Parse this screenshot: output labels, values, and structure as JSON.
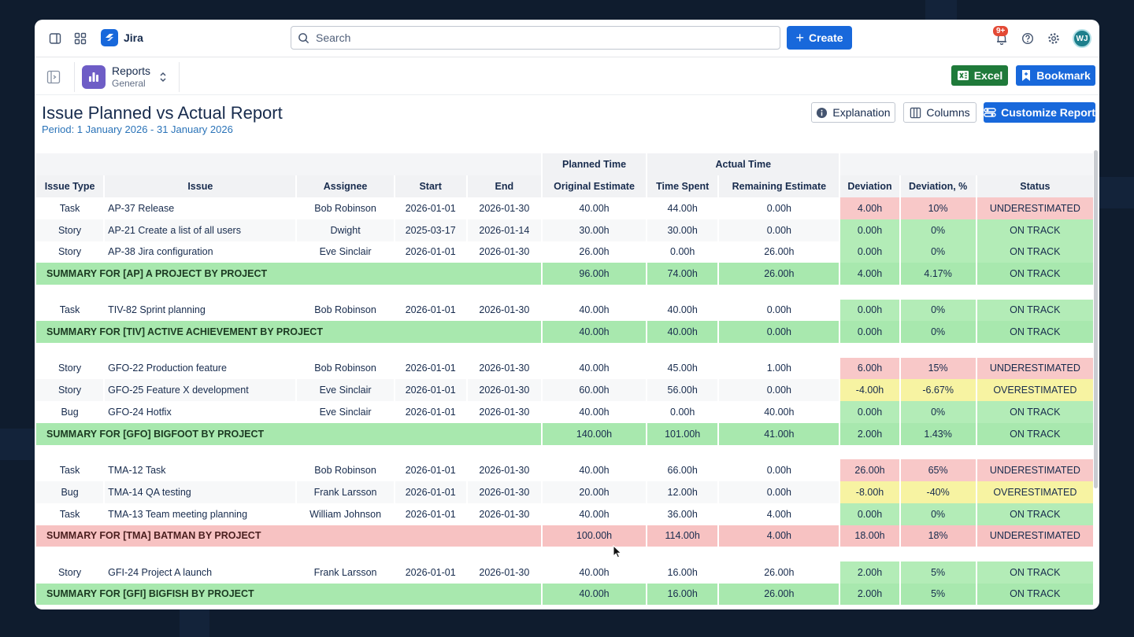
{
  "topbar": {
    "app_name": "Jira",
    "search_placeholder": "Search",
    "create_label": "Create",
    "notification_count": "9+",
    "avatar_initials": "WJ"
  },
  "subbar": {
    "section_title": "Reports",
    "section_subtitle": "General",
    "excel_label": "Excel",
    "bookmark_label": "Bookmark"
  },
  "report": {
    "title": "Issue Planned vs Actual Report",
    "period": "Period: 1 January 2026 - 31 January 2026",
    "explanation_label": "Explanation",
    "columns_label": "Columns",
    "customize_label": "Customize Report"
  },
  "table": {
    "group_headers": {
      "planned": "Planned Time",
      "actual": "Actual Time"
    },
    "columns": [
      "Issue Type",
      "Issue",
      "Assignee",
      "Start",
      "End",
      "Original Estimate",
      "Time Spent",
      "Remaining Estimate",
      "Deviation",
      "Deviation, %",
      "Status"
    ],
    "groups": [
      {
        "rows": [
          [
            "Task",
            "AP-37 Release",
            "Bob Robinson",
            "2026-01-01",
            "2026-01-30",
            "40.00h",
            "44.00h",
            "0.00h",
            "4.00h",
            "10%",
            "UNDERESTIMATED",
            "red"
          ],
          [
            "Story",
            "AP-21 Create a list of all users",
            "Dwight",
            "2025-03-17",
            "2026-01-14",
            "30.00h",
            "30.00h",
            "0.00h",
            "0.00h",
            "0%",
            "ON TRACK",
            "green"
          ],
          [
            "Story",
            "AP-38 Jira configuration",
            "Eve Sinclair",
            "2026-01-01",
            "2026-01-30",
            "26.00h",
            "0.00h",
            "26.00h",
            "0.00h",
            "0%",
            "ON TRACK",
            "green"
          ]
        ],
        "summary": [
          "SUMMARY FOR [AP] A PROJECT BY PROJECT",
          "96.00h",
          "74.00h",
          "26.00h",
          "4.00h",
          "4.17%",
          "ON TRACK",
          "green"
        ]
      },
      {
        "rows": [
          [
            "Task",
            "TIV-82 Sprint planning",
            "Bob Robinson",
            "2026-01-01",
            "2026-01-30",
            "40.00h",
            "40.00h",
            "0.00h",
            "0.00h",
            "0%",
            "ON TRACK",
            "green"
          ]
        ],
        "summary": [
          "SUMMARY FOR [TIV] ACTIVE ACHIEVEMENT BY PROJECT",
          "40.00h",
          "40.00h",
          "0.00h",
          "0.00h",
          "0%",
          "ON TRACK",
          "green"
        ]
      },
      {
        "rows": [
          [
            "Story",
            "GFO-22 Production feature",
            "Bob Robinson",
            "2026-01-01",
            "2026-01-30",
            "40.00h",
            "45.00h",
            "1.00h",
            "6.00h",
            "15%",
            "UNDERESTIMATED",
            "red"
          ],
          [
            "Story",
            "GFO-25 Feature X development",
            "Eve Sinclair",
            "2026-01-01",
            "2026-01-30",
            "60.00h",
            "56.00h",
            "0.00h",
            "-4.00h",
            "-6.67%",
            "OVERESTIMATED",
            "yellow"
          ],
          [
            "Bug",
            "GFO-24 Hotfix",
            "Eve Sinclair",
            "2026-01-01",
            "2026-01-30",
            "40.00h",
            "0.00h",
            "40.00h",
            "0.00h",
            "0%",
            "ON TRACK",
            "green"
          ]
        ],
        "summary": [
          "SUMMARY FOR [GFO] BIGFOOT BY PROJECT",
          "140.00h",
          "101.00h",
          "41.00h",
          "2.00h",
          "1.43%",
          "ON TRACK",
          "green"
        ]
      },
      {
        "rows": [
          [
            "Task",
            "TMA-12 Task",
            "Bob Robinson",
            "2026-01-01",
            "2026-01-30",
            "40.00h",
            "66.00h",
            "0.00h",
            "26.00h",
            "65%",
            "UNDERESTIMATED",
            "red"
          ],
          [
            "Bug",
            "TMA-14 QA testing",
            "Frank Larsson",
            "2026-01-01",
            "2026-01-30",
            "20.00h",
            "12.00h",
            "0.00h",
            "-8.00h",
            "-40%",
            "OVERESTIMATED",
            "yellow"
          ],
          [
            "Task",
            "TMA-13 Team meeting planning",
            "William Johnson",
            "2026-01-01",
            "2026-01-30",
            "40.00h",
            "36.00h",
            "4.00h",
            "0.00h",
            "0%",
            "ON TRACK",
            "green"
          ]
        ],
        "summary": [
          "SUMMARY FOR [TMA] BATMAN BY PROJECT",
          "100.00h",
          "114.00h",
          "4.00h",
          "18.00h",
          "18%",
          "UNDERESTIMATED",
          "red"
        ]
      },
      {
        "rows": [
          [
            "Story",
            "GFI-24 Project A launch",
            "Frank Larsson",
            "2026-01-01",
            "2026-01-30",
            "40.00h",
            "16.00h",
            "26.00h",
            "2.00h",
            "5%",
            "ON TRACK",
            "green"
          ]
        ],
        "summary": [
          "SUMMARY FOR [GFI] BIGFISH BY PROJECT",
          "40.00h",
          "16.00h",
          "26.00h",
          "2.00h",
          "5%",
          "ON TRACK",
          "green"
        ]
      }
    ]
  }
}
